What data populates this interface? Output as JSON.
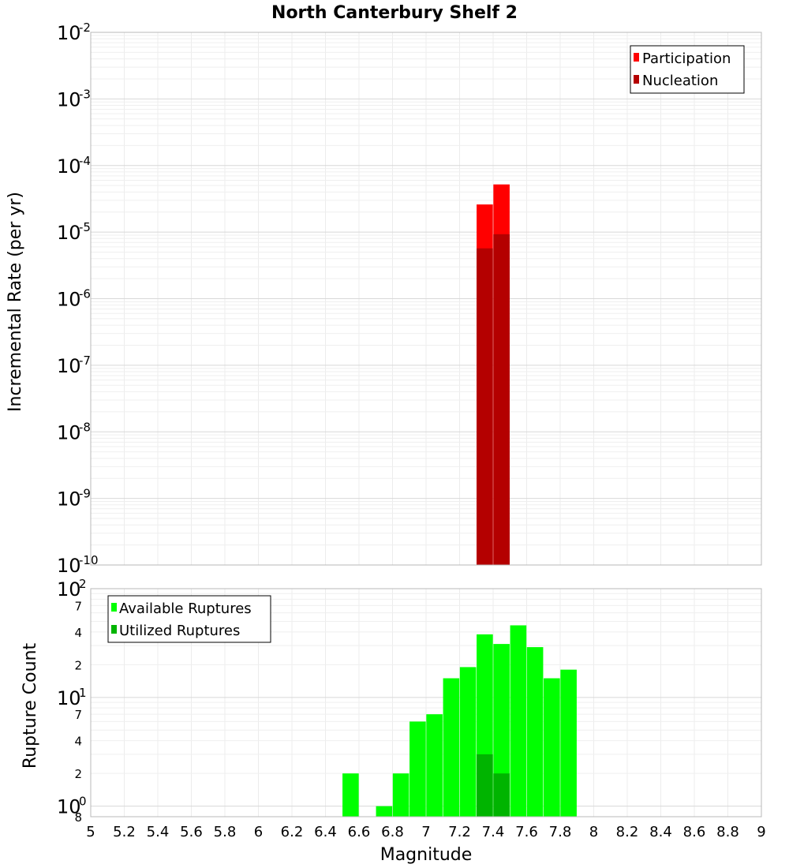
{
  "chart_data": [
    {
      "type": "bar",
      "title": "North Canterbury Shelf 2",
      "ylabel": "Incremental Rate (per yr)",
      "xlabel": "",
      "yscale": "log",
      "ylim_exp": [
        -10,
        -2
      ],
      "xlim": [
        5,
        9
      ],
      "legend_position": "top-right",
      "y_tick_base": "10",
      "y_tick_exponents": [
        "-10",
        "-9",
        "-8",
        "-7",
        "-6",
        "-5",
        "-4",
        "-3",
        "-2"
      ],
      "series": [
        {
          "name": "Participation",
          "color": "#ff0000",
          "x": [
            7.35,
            7.45
          ],
          "values": [
            2.6e-05,
            5.2e-05
          ]
        },
        {
          "name": "Nucleation",
          "color": "#b40000",
          "x": [
            7.35,
            7.45
          ],
          "values": [
            5.7e-06,
            9.3e-06
          ]
        }
      ]
    },
    {
      "type": "bar",
      "title": "",
      "ylabel": "Rupture Count",
      "xlabel": "Magnitude",
      "yscale": "log",
      "ylim": [
        0.8,
        100
      ],
      "xlim": [
        5,
        9
      ],
      "legend_position": "top-left",
      "y_major_ticks": [
        {
          "base": "10",
          "exp": "0",
          "value": 1
        },
        {
          "base": "10",
          "exp": "1",
          "value": 10
        },
        {
          "base": "10",
          "exp": "2",
          "value": 100
        }
      ],
      "y_minor_ticks": [
        {
          "label": "8",
          "value": 0.8
        },
        {
          "label": "2",
          "value": 2
        },
        {
          "label": "4",
          "value": 4
        },
        {
          "label": "7",
          "value": 7
        },
        {
          "label": "2",
          "value": 20
        },
        {
          "label": "4",
          "value": 40
        },
        {
          "label": "7",
          "value": 70
        }
      ],
      "x_tick_labels": [
        "5",
        "5.2",
        "5.4",
        "5.6",
        "5.8",
        "6",
        "6.2",
        "6.4",
        "6.6",
        "6.8",
        "7",
        "7.2",
        "7.4",
        "7.6",
        "7.8",
        "8",
        "8.2",
        "8.4",
        "8.6",
        "8.8",
        "9"
      ],
      "series": [
        {
          "name": "Available Ruptures",
          "color": "#00ff00",
          "x": [
            6.55,
            6.75,
            6.85,
            6.95,
            7.05,
            7.15,
            7.25,
            7.35,
            7.45,
            7.55,
            7.65,
            7.75,
            7.85
          ],
          "values": [
            2,
            1,
            2,
            6,
            7,
            15,
            19,
            38,
            31,
            46,
            29,
            15,
            18
          ]
        },
        {
          "name": "Utilized Ruptures",
          "color": "#00b400",
          "x": [
            7.35,
            7.45
          ],
          "values": [
            3,
            2
          ]
        }
      ]
    }
  ]
}
